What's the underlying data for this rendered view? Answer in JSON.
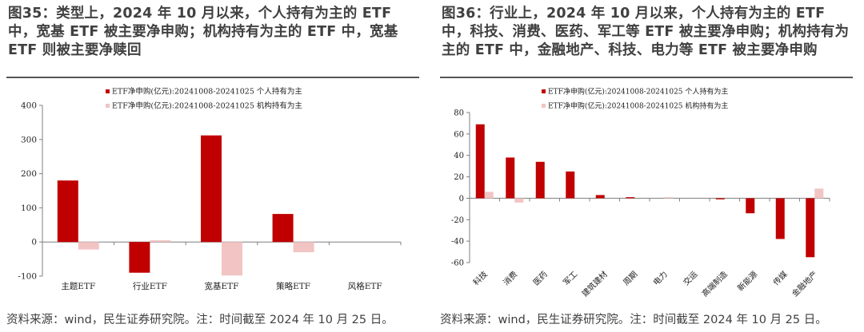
{
  "left": {
    "title": "图35：类型上，2024 年 10 月以来，个人持有为主的 ETF 中，宽基 ETF 被主要净申购；机构持有为主的 ETF 中，宽基 ETF 则被主要净赎回",
    "source": "资料来源：wind，民生证券研究院。注：时间截至 2024 年 10 月 25 日。"
  },
  "right": {
    "title": "图36：行业上，2024 年 10 月以来，个人持有为主的 ETF 中，科技、消费、医药、军工等 ETF 被主要净申购；机构持有为主的 ETF 中，金融地产、科技、电力等 ETF 被主要净申购",
    "source": "资料来源：wind，民生证券研究院。注：时间截至 2024 年 10 月 25 日。"
  },
  "chart_data": [
    {
      "type": "bar",
      "categories": [
        "主题ETF",
        "行业ETF",
        "宽基ETF",
        "策略ETF",
        "风格ETF"
      ],
      "series": [
        {
          "name": "ETF净申购(亿元):20241008-20241025 个人持有为主",
          "color": "#c00000",
          "values": [
            180,
            -90,
            312,
            82,
            0
          ]
        },
        {
          "name": "ETF净申购(亿元):20241008-20241025 机构持有为主",
          "color": "#f2c4c4",
          "values": [
            -22,
            5,
            -98,
            -30,
            0
          ]
        }
      ],
      "ylim": [
        -100,
        400
      ],
      "yticks": [
        -100,
        0,
        100,
        200,
        300,
        400
      ],
      "legend_position": "top"
    },
    {
      "type": "bar",
      "categories": [
        "科技",
        "消费",
        "医药",
        "军工",
        "建筑建材",
        "周期",
        "电力",
        "交运",
        "高端制造",
        "新能源",
        "传媒",
        "金融地产"
      ],
      "series": [
        {
          "name": "ETF净申购(亿元):20241008-20241025 个人持有为主",
          "color": "#c00000",
          "values": [
            69,
            38,
            34,
            25,
            3,
            1,
            0,
            0,
            -1,
            -14,
            -38,
            -55
          ]
        },
        {
          "name": "ETF净申购(亿元):20241008-20241025 机构持有为主",
          "color": "#f2c4c4",
          "values": [
            6,
            -4,
            0,
            0,
            0,
            0,
            1,
            0,
            0,
            0,
            0,
            9
          ]
        }
      ],
      "ylim": [
        -60,
        80
      ],
      "yticks": [
        -60,
        -40,
        -20,
        0,
        20,
        40,
        60,
        80
      ],
      "legend_position": "top"
    }
  ]
}
